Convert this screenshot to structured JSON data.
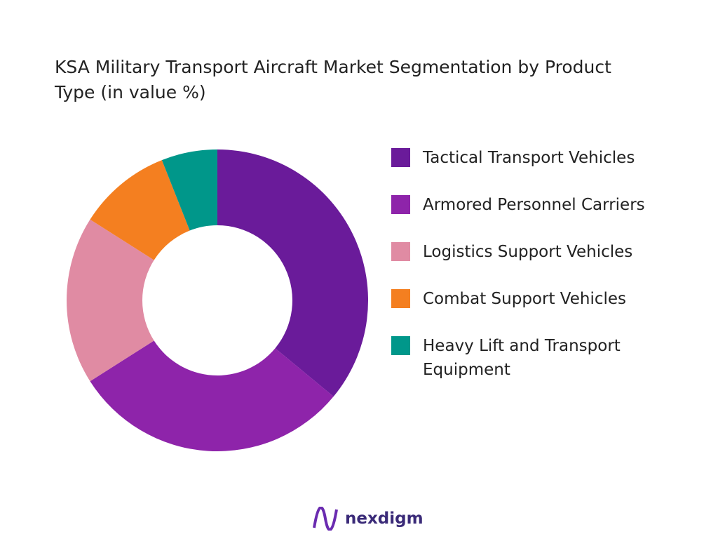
{
  "chart_data": {
    "type": "donut",
    "title": "KSA Military Transport Aircraft Market Segmentation by Product Type (in value %)",
    "categories": [
      "Tactical Transport Vehicles",
      "Armored Personnel Carriers",
      "Logistics Support Vehicles",
      "Combat Support Vehicles",
      "Heavy Lift and Transport Equipment"
    ],
    "values": [
      36,
      30,
      18,
      10,
      6
    ],
    "colors": [
      "#6a1b9a",
      "#8e24aa",
      "#e08ba3",
      "#f47f20",
      "#00978a"
    ]
  },
  "brand": "nexdigm"
}
